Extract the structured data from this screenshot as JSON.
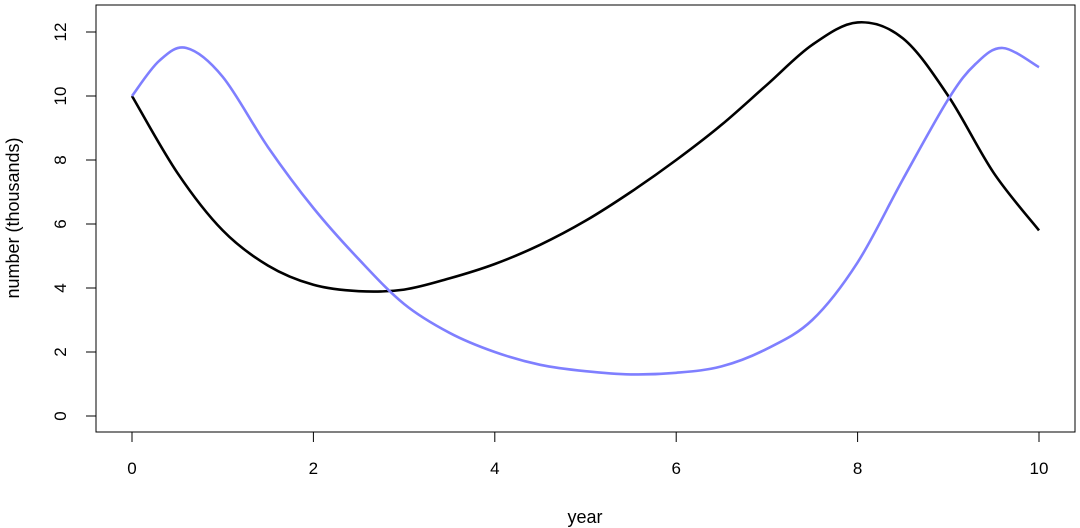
{
  "chart_data": {
    "type": "line",
    "title": "",
    "xlabel": "year",
    "ylabel": "number (thousands)",
    "xlim": [
      0,
      10
    ],
    "ylim": [
      0,
      12
    ],
    "x_ticks": [
      "0",
      "2",
      "4",
      "6",
      "8",
      "10"
    ],
    "y_ticks": [
      "0",
      "2",
      "4",
      "6",
      "8",
      "10",
      "12"
    ],
    "grid": false,
    "legend": "none",
    "series": [
      {
        "color": "#000000",
        "x": [
          0,
          0.5,
          1,
          1.5,
          2,
          2.5,
          3,
          3.5,
          4,
          4.5,
          5,
          5.5,
          6,
          6.5,
          7,
          7.5,
          8,
          8.5,
          9,
          9.5,
          10
        ],
        "y": [
          10,
          7.6,
          5.8,
          4.7,
          4.1,
          3.9,
          3.95,
          4.3,
          4.75,
          5.35,
          6.1,
          7.0,
          8.0,
          9.1,
          10.35,
          11.6,
          12.3,
          11.8,
          10.0,
          7.6,
          5.8
        ]
      },
      {
        "color": "#7f7fff",
        "x": [
          0,
          0.3,
          0.6,
          1,
          1.5,
          2,
          2.5,
          3,
          3.5,
          4,
          4.5,
          5,
          5.5,
          6,
          6.5,
          7,
          7.5,
          8,
          8.5,
          9,
          9.3,
          9.6,
          10
        ],
        "y": [
          10,
          11.1,
          11.5,
          10.6,
          8.4,
          6.5,
          4.9,
          3.5,
          2.6,
          2.0,
          1.6,
          1.4,
          1.3,
          1.35,
          1.55,
          2.1,
          3.0,
          4.8,
          7.4,
          9.9,
          11.0,
          11.5,
          10.9
        ]
      }
    ]
  }
}
